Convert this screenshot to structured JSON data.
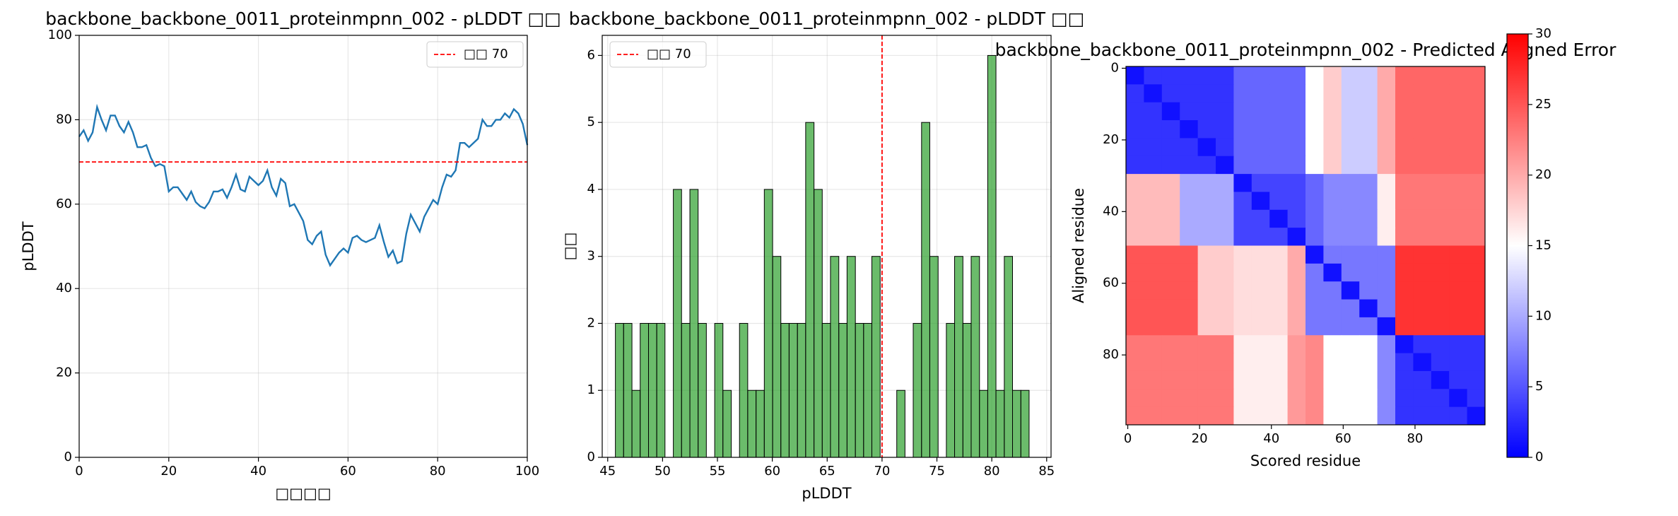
{
  "chart_data": [
    {
      "type": "line",
      "title": "backbone_backbone_0011_proteinmpnn_002 - pLDDT □□",
      "xlabel": "□□□□",
      "ylabel": "pLDDT",
      "x": [
        0,
        1,
        2,
        3,
        4,
        5,
        6,
        7,
        8,
        9,
        10,
        11,
        12,
        13,
        14,
        15,
        16,
        17,
        18,
        19,
        20,
        21,
        22,
        23,
        24,
        25,
        26,
        27,
        28,
        29,
        30,
        31,
        32,
        33,
        34,
        35,
        36,
        37,
        38,
        39,
        40,
        41,
        42,
        43,
        44,
        45,
        46,
        47,
        48,
        49,
        50,
        51,
        52,
        53,
        54,
        55,
        56,
        57,
        58,
        59,
        60,
        61,
        62,
        63,
        64,
        65,
        66,
        67,
        68,
        69,
        70,
        71,
        72,
        73,
        74,
        75,
        76,
        77,
        78,
        79,
        80,
        81,
        82,
        83,
        84,
        85,
        86,
        87,
        88,
        89,
        90,
        91,
        92,
        93,
        94,
        95,
        96,
        97,
        98,
        99,
        100
      ],
      "values": [
        76,
        77.5,
        75,
        77,
        83,
        80,
        77.5,
        81,
        81,
        78.5,
        77,
        79.5,
        77,
        73.5,
        73.5,
        74,
        71,
        69,
        69.5,
        69,
        63,
        64,
        64,
        62.5,
        61,
        63,
        60.5,
        59.5,
        59,
        60.5,
        63,
        63,
        63.5,
        61.5,
        64,
        67,
        63.5,
        63,
        66.5,
        65.5,
        64.5,
        65.5,
        68,
        64,
        62,
        66,
        65,
        59.5,
        60,
        58,
        56,
        51.5,
        50.5,
        52.5,
        53.5,
        48,
        45.5,
        47,
        48.5,
        49.5,
        48.5,
        52,
        52.5,
        51.5,
        51,
        51.5,
        52,
        55,
        51,
        47.5,
        49,
        46,
        46.5,
        53,
        57.5,
        55.5,
        53.5,
        57,
        59,
        61,
        60,
        64,
        67,
        66.5,
        68,
        74.5,
        74.5,
        73.5,
        74.5,
        75.5,
        80,
        78.5,
        78.5,
        80,
        80,
        81.5,
        80.5,
        82.5,
        81.5,
        79,
        74
      ],
      "color": "#1f77b4",
      "threshold": 70,
      "threshold_color": "#ff0000",
      "legend_label": "□□ 70",
      "legend": "upper right",
      "xlim": [
        0,
        100
      ],
      "xticks": [
        0,
        20,
        40,
        60,
        80,
        100
      ],
      "ylim": [
        0,
        100
      ],
      "yticks": [
        0,
        20,
        40,
        60,
        80,
        100
      ],
      "grid": true
    },
    {
      "type": "histogram",
      "title": "backbone_backbone_0011_proteinmpnn_002 - pLDDT □□",
      "xlabel": "pLDDT",
      "ylabel": "□□",
      "bins": [
        45.7,
        46.45,
        47.21,
        47.96,
        48.72,
        49.47,
        50.22,
        50.98,
        51.73,
        52.49,
        53.24,
        53.99,
        54.75,
        55.5,
        56.26,
        57.01,
        57.76,
        58.52,
        59.27,
        60.03,
        60.78,
        61.53,
        62.29,
        63.04,
        63.8,
        64.55,
        65.3,
        66.06,
        66.81,
        67.57,
        68.32,
        69.07,
        69.83,
        70.58,
        71.34,
        72.09,
        72.84,
        73.6,
        74.35,
        75.11,
        75.86,
        76.61,
        77.37,
        78.12,
        78.88,
        79.63,
        80.38,
        81.14,
        81.89,
        82.65,
        83.4
      ],
      "values": [
        2,
        2,
        1,
        2,
        2,
        2,
        0,
        4,
        2,
        4,
        2,
        0,
        2,
        1,
        0,
        2,
        1,
        1,
        4,
        3,
        2,
        2,
        2,
        5,
        4,
        2,
        3,
        2,
        3,
        2,
        2,
        3,
        0,
        0,
        1,
        0,
        2,
        5,
        3,
        0,
        2,
        3,
        2,
        3,
        1,
        6,
        1,
        3,
        1,
        1
      ],
      "color": "rgba(44,160,44,0.7)",
      "edgecolor": "#000000",
      "threshold": 70,
      "threshold_color": "#ff0000",
      "legend_label": "□□ 70",
      "legend": "upper left",
      "xlim": [
        44.5,
        85.4
      ],
      "xticks": [
        45,
        50,
        55,
        60,
        65,
        70,
        75,
        80,
        85
      ],
      "ylim": [
        0,
        6.3
      ],
      "yticks": [
        0,
        1,
        2,
        3,
        4,
        5,
        6
      ],
      "grid": true
    },
    {
      "type": "heatmap",
      "title": "backbone_backbone_0011_proteinmpnn_002 - Predicted Aligned Error",
      "xlabel": "Scored residue",
      "ylabel": "Aligned residue",
      "xlim": [
        -0.5,
        99.5
      ],
      "xticks": [
        0,
        20,
        40,
        60,
        80
      ],
      "ylim": [
        99.5,
        -0.5
      ],
      "yticks": [
        0,
        20,
        40,
        60,
        80
      ],
      "zlim": [
        0,
        30
      ],
      "zticks": [
        0,
        5,
        10,
        15,
        20,
        25,
        30
      ],
      "colormap": "bwr",
      "values": [
        [
          1,
          3,
          3,
          3,
          3,
          3,
          6,
          6,
          6,
          6,
          15,
          18,
          12,
          12,
          20,
          24,
          24,
          24,
          24,
          24
        ],
        [
          3,
          1,
          3,
          3,
          3,
          3,
          6,
          6,
          6,
          6,
          15,
          18,
          12,
          12,
          20,
          24,
          24,
          24,
          24,
          24
        ],
        [
          3,
          3,
          1,
          3,
          3,
          3,
          6,
          6,
          6,
          6,
          15,
          18,
          12,
          12,
          20,
          24,
          24,
          24,
          24,
          24
        ],
        [
          3,
          3,
          3,
          1,
          3,
          3,
          6,
          6,
          6,
          6,
          15,
          18,
          12,
          12,
          20,
          24,
          24,
          24,
          24,
          24
        ],
        [
          3,
          3,
          3,
          3,
          1,
          3,
          6,
          6,
          6,
          6,
          15,
          18,
          12,
          12,
          20,
          24,
          24,
          24,
          24,
          24
        ],
        [
          3,
          3,
          3,
          3,
          3,
          1,
          6,
          6,
          6,
          6,
          15,
          18,
          12,
          12,
          20,
          24,
          24,
          24,
          24,
          24
        ],
        [
          19,
          19,
          19,
          10,
          10,
          10,
          1,
          4,
          4,
          4,
          6,
          8,
          8,
          8,
          16,
          23,
          23,
          23,
          23,
          23
        ],
        [
          19,
          19,
          19,
          10,
          10,
          10,
          4,
          1,
          4,
          4,
          6,
          8,
          8,
          8,
          16,
          23,
          23,
          23,
          23,
          23
        ],
        [
          19,
          19,
          19,
          10,
          10,
          10,
          4,
          4,
          1,
          4,
          6,
          8,
          8,
          8,
          16,
          23,
          23,
          23,
          23,
          23
        ],
        [
          19,
          19,
          19,
          10,
          10,
          10,
          4,
          4,
          4,
          1,
          6,
          8,
          8,
          8,
          16,
          23,
          23,
          23,
          23,
          23
        ],
        [
          25,
          25,
          25,
          25,
          18,
          18,
          17,
          17,
          17,
          20,
          1,
          7,
          7,
          7,
          7,
          27,
          27,
          27,
          27,
          27
        ],
        [
          25,
          25,
          25,
          25,
          18,
          18,
          17,
          17,
          17,
          20,
          7,
          1,
          7,
          7,
          7,
          27,
          27,
          27,
          27,
          27
        ],
        [
          25,
          25,
          25,
          25,
          18,
          18,
          17,
          17,
          17,
          20,
          7,
          7,
          1,
          7,
          7,
          27,
          27,
          27,
          27,
          27
        ],
        [
          25,
          25,
          25,
          25,
          18,
          18,
          17,
          17,
          17,
          20,
          7,
          7,
          7,
          1,
          7,
          27,
          27,
          27,
          27,
          27
        ],
        [
          25,
          25,
          25,
          25,
          18,
          18,
          17,
          17,
          17,
          20,
          7,
          7,
          7,
          7,
          1,
          27,
          27,
          27,
          27,
          27
        ],
        [
          23,
          23,
          23,
          23,
          23,
          23,
          16,
          16,
          16,
          21,
          22,
          15,
          15,
          15,
          8,
          1,
          3,
          3,
          3,
          3
        ],
        [
          23,
          23,
          23,
          23,
          23,
          23,
          16,
          16,
          16,
          21,
          22,
          15,
          15,
          15,
          8,
          3,
          1,
          3,
          3,
          3
        ],
        [
          23,
          23,
          23,
          23,
          23,
          23,
          16,
          16,
          16,
          21,
          22,
          15,
          15,
          15,
          8,
          3,
          3,
          1,
          3,
          3
        ],
        [
          23,
          23,
          23,
          23,
          23,
          23,
          16,
          16,
          16,
          21,
          22,
          15,
          15,
          15,
          8,
          3,
          3,
          3,
          1,
          3
        ],
        [
          23,
          23,
          23,
          23,
          23,
          23,
          16,
          16,
          16,
          21,
          22,
          15,
          15,
          15,
          8,
          3,
          3,
          3,
          3,
          1
        ]
      ]
    }
  ]
}
